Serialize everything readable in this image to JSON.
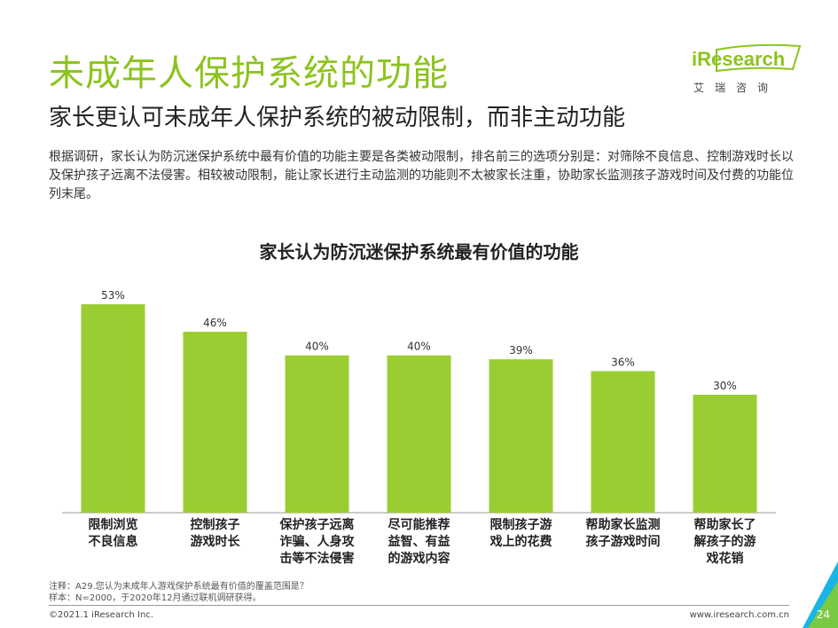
{
  "header": {
    "title": "未成年人保护系统的功能",
    "subtitle": "家长更认可未成年人保护系统的被动限制，而非主动功能",
    "intro": "根据调研，家长认为防沉迷保护系统中最有价值的功能主要是各类被动限制，排名前三的选项分别是：对筛除不良信息、控制游戏时长以及保护孩子远离不法侵害。相较被动限制，能让家长进行主动监测的功能则不太被家长注重，协助家长监测孩子游戏时间及付费的功能位列末尾。"
  },
  "logo": {
    "word": "iResearch",
    "chinese": "艾瑞咨询",
    "icon": "iresearch-logo-icon"
  },
  "chart_data": {
    "type": "bar",
    "title": "家长认为防沉迷保护系统最有价值的功能",
    "categories": [
      "限制浏览不良信息",
      "控制孩子游戏时长",
      "保护孩子远离诈骗、人身攻击等不法侵害",
      "尽可能推荐益智、有益的游戏内容",
      "限制孩子游戏上的花费",
      "帮助家长监测孩子游戏时间",
      "帮助家长了解孩子的游戏花销"
    ],
    "category_lines": [
      [
        "限制浏览",
        "不良信息"
      ],
      [
        "控制孩子",
        "游戏时长"
      ],
      [
        "保护孩子远离",
        "诈骗、人身攻",
        "击等不法侵害"
      ],
      [
        "尽可能推荐",
        "益智、有益",
        "的游戏内容"
      ],
      [
        "限制孩子游",
        "戏上的花费"
      ],
      [
        "帮助家长监测",
        "孩子游戏时间"
      ],
      [
        "帮助家长了",
        "解孩子的游",
        "戏花销"
      ]
    ],
    "values": [
      53,
      46,
      40,
      40,
      39,
      36,
      30
    ],
    "value_labels": [
      "53%",
      "46%",
      "40%",
      "40%",
      "39%",
      "36%",
      "30%"
    ],
    "ylim": [
      0,
      60
    ],
    "bar_color": "#9acd32",
    "grid": false
  },
  "notes": {
    "note": "注释：A29.您认为未成年人游戏保护系统最有价值的覆盖范围是？",
    "sample": "样本：N=2000，于2020年12月通过联机调研获得。"
  },
  "footer": {
    "copyright": "©2021.1 iResearch Inc.",
    "website": "www.iresearch.com.cn",
    "page": "24"
  },
  "colors": {
    "accent": "#8cc31f",
    "corner_a": "#19b5e5",
    "corner_b": "#7ac943"
  }
}
